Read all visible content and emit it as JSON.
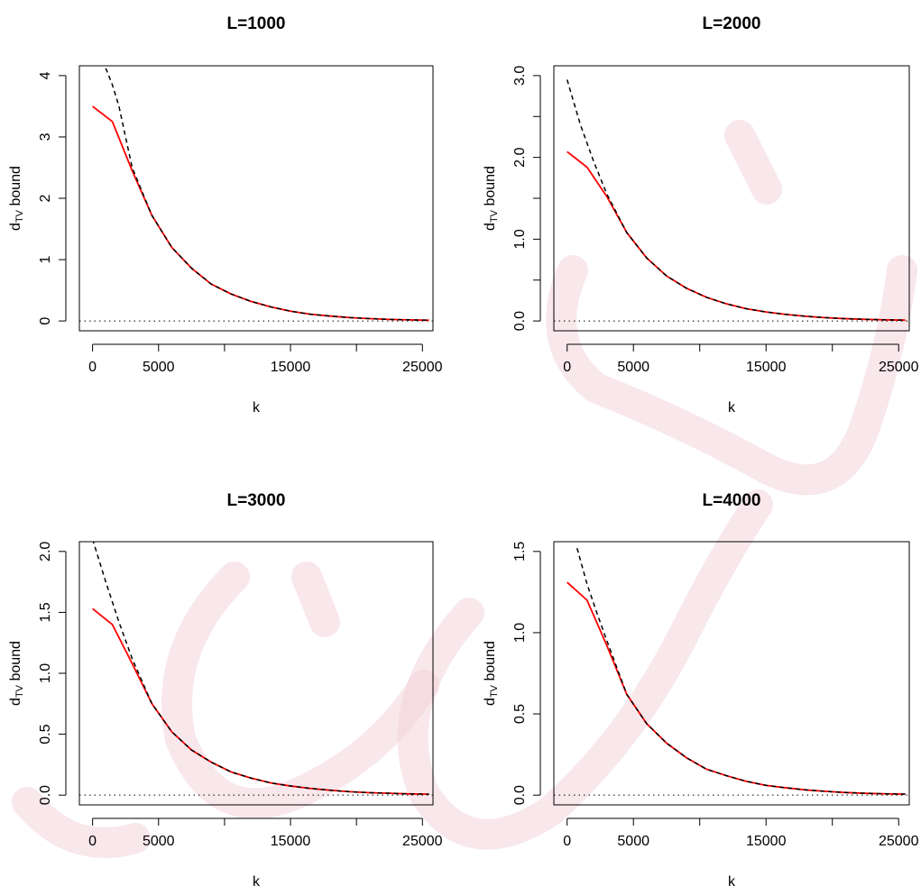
{
  "colors": {
    "red_series": "#ff0000",
    "dashed_series": "#000000",
    "baseline": "#000000",
    "watermark": "#f2d4da"
  },
  "chart_data": [
    {
      "type": "line",
      "title": "L=1000",
      "xlabel": "k",
      "ylabel_main": "d",
      "ylabel_sub": "TV",
      "ylabel_tail": " bound",
      "xlim": [
        0,
        25500
      ],
      "ylim": [
        0,
        4
      ],
      "xticks": [
        0,
        5000,
        10000,
        15000,
        20000,
        25000
      ],
      "xtick_labels": [
        "0",
        "5000",
        "",
        "15000",
        "",
        "25000"
      ],
      "yticks": [
        0,
        1,
        2,
        3,
        4
      ],
      "ytick_labels": [
        "0",
        "1",
        "2",
        "3",
        "4"
      ],
      "baseline_y": 0,
      "series": [
        {
          "style": "solid-red",
          "x": [
            0,
            1500,
            3000,
            4500,
            6000,
            7500,
            9000,
            10500,
            12000,
            13500,
            15000,
            16500,
            18000,
            19500,
            21000,
            22500,
            24000,
            25500
          ],
          "y": [
            3.5,
            3.25,
            2.45,
            1.72,
            1.2,
            0.86,
            0.6,
            0.44,
            0.32,
            0.23,
            0.16,
            0.11,
            0.08,
            0.055,
            0.038,
            0.026,
            0.018,
            0.012
          ]
        },
        {
          "style": "dashed-black",
          "x": [
            1000,
            1500,
            2000,
            3000,
            4500,
            6000,
            7500,
            9000,
            10500,
            12000,
            13500,
            15000,
            16500,
            18000,
            19500,
            21000,
            22500,
            24000,
            25500
          ],
          "y": [
            4.12,
            3.85,
            3.5,
            2.5,
            1.72,
            1.2,
            0.86,
            0.6,
            0.44,
            0.32,
            0.23,
            0.16,
            0.11,
            0.08,
            0.055,
            0.038,
            0.026,
            0.018,
            0.012
          ]
        }
      ]
    },
    {
      "type": "line",
      "title": "L=2000",
      "xlabel": "k",
      "ylabel_main": "d",
      "ylabel_sub": "TV",
      "ylabel_tail": " bound",
      "xlim": [
        0,
        25500
      ],
      "ylim": [
        0,
        3
      ],
      "xticks": [
        0,
        5000,
        10000,
        15000,
        20000,
        25000
      ],
      "xtick_labels": [
        "0",
        "5000",
        "",
        "15000",
        "",
        "25000"
      ],
      "yticks": [
        0,
        0.5,
        1,
        1.5,
        2,
        2.5,
        3
      ],
      "ytick_labels": [
        "0.0",
        "",
        "1.0",
        "",
        "2.0",
        "",
        "3.0"
      ],
      "baseline_y": 0,
      "series": [
        {
          "style": "solid-red",
          "x": [
            0,
            1500,
            3000,
            4500,
            6000,
            7500,
            9000,
            10500,
            12000,
            13500,
            15000,
            16500,
            18000,
            19500,
            21000,
            22500,
            24000,
            25500
          ],
          "y": [
            2.07,
            1.88,
            1.52,
            1.08,
            0.77,
            0.55,
            0.4,
            0.29,
            0.21,
            0.15,
            0.11,
            0.08,
            0.057,
            0.04,
            0.028,
            0.02,
            0.014,
            0.01
          ]
        },
        {
          "style": "dashed-black",
          "x": [
            0,
            1000,
            2000,
            3000,
            4500,
            6000,
            7500,
            9000,
            10500,
            12000,
            13500,
            15000,
            16500,
            18000,
            19500,
            21000,
            22500,
            24000,
            25500
          ],
          "y": [
            2.95,
            2.4,
            1.95,
            1.55,
            1.08,
            0.77,
            0.55,
            0.4,
            0.29,
            0.21,
            0.15,
            0.11,
            0.08,
            0.057,
            0.04,
            0.028,
            0.02,
            0.014,
            0.01
          ]
        }
      ]
    },
    {
      "type": "line",
      "title": "L=3000",
      "xlabel": "k",
      "ylabel_main": "d",
      "ylabel_sub": "TV",
      "ylabel_tail": " bound",
      "xlim": [
        0,
        25500
      ],
      "ylim": [
        0,
        2
      ],
      "xticks": [
        0,
        5000,
        10000,
        15000,
        20000,
        25000
      ],
      "xtick_labels": [
        "0",
        "5000",
        "",
        "15000",
        "",
        "25000"
      ],
      "yticks": [
        0,
        0.5,
        1,
        1.5,
        2
      ],
      "ytick_labels": [
        "0.0",
        "0.5",
        "1.0",
        "1.5",
        "2.0"
      ],
      "baseline_y": 0,
      "series": [
        {
          "style": "solid-red",
          "x": [
            0,
            1500,
            3000,
            4500,
            6000,
            7500,
            9000,
            10500,
            12000,
            13500,
            15000,
            16500,
            18000,
            19500,
            21000,
            22500,
            24000,
            25500
          ],
          "y": [
            1.53,
            1.4,
            1.08,
            0.75,
            0.52,
            0.37,
            0.27,
            0.19,
            0.14,
            0.1,
            0.075,
            0.055,
            0.04,
            0.028,
            0.02,
            0.015,
            0.01,
            0.008
          ]
        },
        {
          "style": "dashed-black",
          "x": [
            0,
            1000,
            2000,
            3000,
            4500,
            6000,
            7500,
            9000,
            10500,
            12000,
            13500,
            15000,
            16500,
            18000,
            19500,
            21000,
            22500,
            24000,
            25500
          ],
          "y": [
            2.1,
            1.75,
            1.42,
            1.12,
            0.75,
            0.52,
            0.37,
            0.27,
            0.19,
            0.14,
            0.1,
            0.075,
            0.055,
            0.04,
            0.028,
            0.02,
            0.015,
            0.01,
            0.008
          ]
        }
      ]
    },
    {
      "type": "line",
      "title": "L=4000",
      "xlabel": "k",
      "ylabel_main": "d",
      "ylabel_sub": "TV",
      "ylabel_tail": " bound",
      "xlim": [
        0,
        25500
      ],
      "ylim": [
        0,
        1.5
      ],
      "xticks": [
        0,
        5000,
        10000,
        15000,
        20000,
        25000
      ],
      "xtick_labels": [
        "0",
        "5000",
        "",
        "15000",
        "",
        "25000"
      ],
      "yticks": [
        0,
        0.5,
        1,
        1.5
      ],
      "ytick_labels": [
        "0.0",
        "0.5",
        "1.0",
        "1.5"
      ],
      "baseline_y": 0,
      "series": [
        {
          "style": "solid-red",
          "x": [
            0,
            1500,
            3000,
            4500,
            6000,
            7500,
            9000,
            10500,
            12000,
            13500,
            15000,
            16500,
            18000,
            19500,
            21000,
            22500,
            24000,
            25500
          ],
          "y": [
            1.31,
            1.2,
            0.92,
            0.62,
            0.44,
            0.32,
            0.23,
            0.16,
            0.12,
            0.085,
            0.06,
            0.045,
            0.032,
            0.023,
            0.016,
            0.011,
            0.008,
            0.006
          ]
        },
        {
          "style": "dashed-black",
          "x": [
            750,
            1500,
            2250,
            3000,
            4500,
            6000,
            7500,
            9000,
            10500,
            12000,
            13500,
            15000,
            16500,
            18000,
            19500,
            21000,
            22500,
            24000,
            25500
          ],
          "y": [
            1.52,
            1.3,
            1.12,
            0.95,
            0.62,
            0.44,
            0.32,
            0.23,
            0.16,
            0.12,
            0.085,
            0.06,
            0.045,
            0.032,
            0.023,
            0.016,
            0.011,
            0.008,
            0.006
          ]
        }
      ]
    }
  ]
}
